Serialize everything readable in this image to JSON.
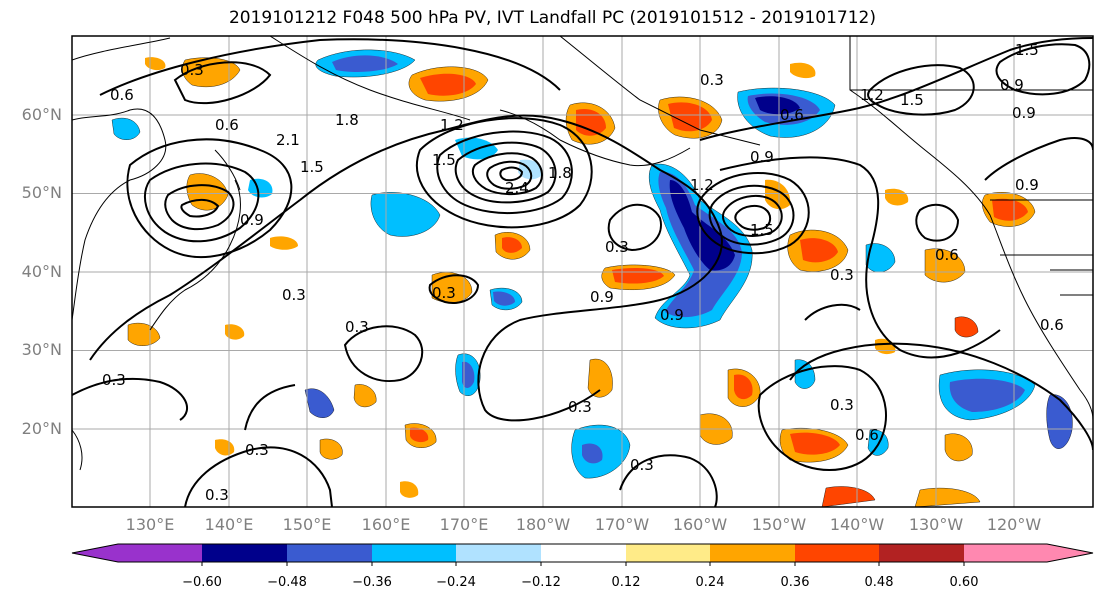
{
  "title": "2019101212 F048 500 hPa PV, IVT Landfall PC (2019101512 - 2019101712)",
  "map": {
    "lon_labels": [
      "130°E",
      "140°E",
      "150°E",
      "160°E",
      "170°E",
      "180°W",
      "170°W",
      "160°W",
      "150°W",
      "140°W",
      "130°W",
      "120°W"
    ],
    "lat_labels": [
      "60°N",
      "50°N",
      "40°N",
      "30°N",
      "20°N"
    ],
    "lat_values": [
      60,
      50,
      40,
      30,
      20
    ],
    "contour_labels": [
      "0.3",
      "0.6",
      "0.9",
      "1.2",
      "1.5",
      "1.8",
      "2.1",
      "2.4"
    ]
  },
  "colorbar": {
    "colors": [
      "#9932cc",
      "#00008b",
      "#3a5bd0",
      "#00bfff",
      "#b0e2ff",
      "#ffffff",
      "#ffeb88",
      "#ffa500",
      "#ff4500",
      "#b22222",
      "#ff88b0"
    ],
    "ticks": [
      "−0.60",
      "−0.48",
      "−0.36",
      "−0.24",
      "−0.12",
      "0.12",
      "0.24",
      "0.36",
      "0.48",
      "0.60"
    ],
    "values": [
      -0.6,
      -0.48,
      -0.36,
      -0.24,
      -0.12,
      0.12,
      0.24,
      0.36,
      0.48,
      0.6
    ]
  }
}
